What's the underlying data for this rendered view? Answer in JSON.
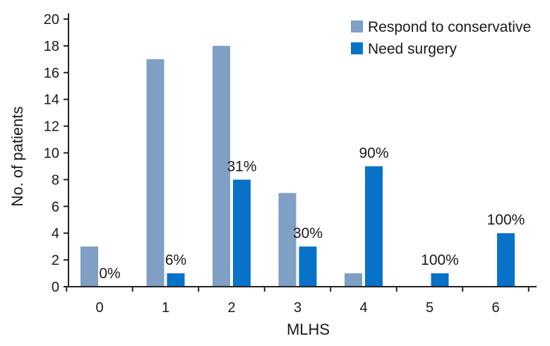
{
  "chart_data": {
    "type": "bar",
    "title": "",
    "xlabel": "MLHS",
    "ylabel": "No. of patients",
    "categories": [
      "0",
      "1",
      "2",
      "3",
      "4",
      "5",
      "6"
    ],
    "ylim": [
      0,
      20
    ],
    "yticks": [
      "0",
      "2",
      "4",
      "6",
      "8",
      "10",
      "12",
      "14",
      "16",
      "18",
      "20"
    ],
    "grid": false,
    "legend_position": "top-right",
    "series": [
      {
        "name": "Respond to conservative",
        "color": "#7f9fc4",
        "values": [
          3,
          17,
          18,
          7,
          1,
          0,
          0
        ]
      },
      {
        "name": "Need surgery",
        "color": "#0872c9",
        "values": [
          0,
          1,
          8,
          3,
          9,
          1,
          4
        ]
      }
    ],
    "annotations": [
      "0%",
      "6%",
      "31%",
      "30%",
      "90%",
      "100%",
      "100%"
    ]
  }
}
